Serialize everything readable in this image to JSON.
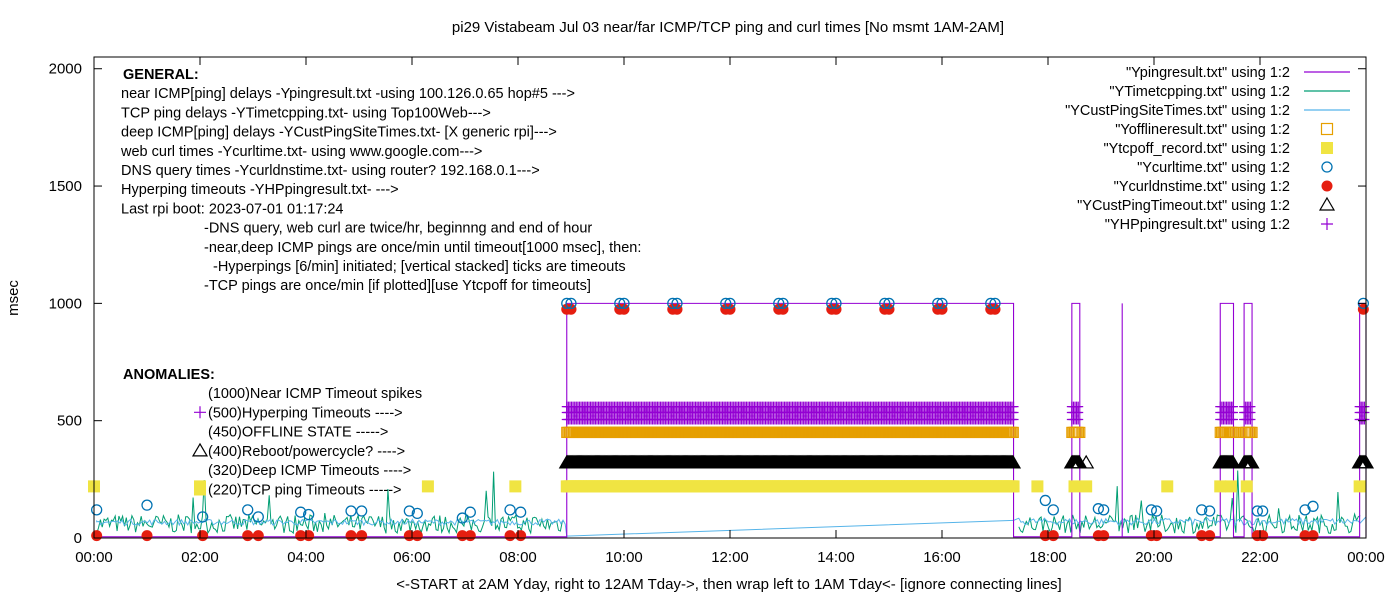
{
  "chart_data": {
    "type": "line",
    "title": "pi29 Vistabeam Jul 03  near/far ICMP/TCP ping and curl times [No msmt 1AM-2AM]",
    "xlabel": "<-START at 2AM Yday, right to 12AM Tday->, then wrap left to 1AM Tday<- [ignore connecting lines]",
    "ylabel": "msec",
    "xlim": [
      0,
      24
    ],
    "ylim": [
      0,
      2050
    ],
    "x_tick_labels": [
      "00:00",
      "02:00",
      "04:00",
      "06:00",
      "08:00",
      "10:00",
      "12:00",
      "14:00",
      "16:00",
      "18:00",
      "20:00",
      "22:00",
      "00:00"
    ],
    "x_tick_values": [
      0,
      2,
      4,
      6,
      8,
      10,
      12,
      14,
      16,
      18,
      20,
      22,
      24
    ],
    "y_tick_labels": [
      "0",
      "500",
      "1000",
      "1500",
      "2000"
    ],
    "y_tick_values": [
      0,
      500,
      1000,
      1500,
      2000
    ],
    "legend_position": "top-right",
    "colors": {
      "ping": "#9400d3",
      "tcp": "#009e73",
      "custping": "#56b4e9",
      "offline": "#e69f00",
      "tcpoff": "#f0e442",
      "curl": "#0072b2",
      "dns": "#e51e10",
      "custtimeout": "#000000",
      "hpping": "#9400d3"
    },
    "legend": [
      {
        "label": "\"Ypingresult.txt\" using 1:2",
        "kind": "line",
        "color": "#9400d3"
      },
      {
        "label": "\"YTimetcpping.txt\" using 1:2",
        "kind": "line",
        "color": "#009e73"
      },
      {
        "label": "\"YCustPingSiteTimes.txt\" using 1:2",
        "kind": "line",
        "color": "#56b4e9"
      },
      {
        "label": "\"Yofflineresult.txt\" using 1:2",
        "kind": "open-square",
        "color": "#e69f00"
      },
      {
        "label": "\"Ytcpoff_record.txt\" using 1:2",
        "kind": "filled-square",
        "color": "#f0e442"
      },
      {
        "label": "\"Ycurltime.txt\" using 1:2",
        "kind": "open-circle",
        "color": "#0072b2"
      },
      {
        "label": "\"Ycurldnstime.txt\" using 1:2",
        "kind": "filled-circle",
        "color": "#e51e10"
      },
      {
        "label": "\"YCustPingTimeout.txt\" using 1:2",
        "kind": "open-triangle",
        "color": "#000000"
      },
      {
        "label": "\"YHPpingresult.txt\" using 1:2",
        "kind": "plus",
        "color": "#9400d3"
      }
    ],
    "general_notes": [
      "GENERAL:",
      "near ICMP[ping] delays -Ypingresult.txt -using 100.126.0.65 hop#5 --->",
      "TCP ping delays -YTimetcpping.txt- using Top100Web--->",
      "deep ICMP[ping] delays -YCustPingSiteTimes.txt- [X generic rpi]--->",
      "web curl times -Ycurltime.txt- using www.google.com--->",
      "DNS query times -Ycurldnstime.txt- using router? 192.168.0.1--->",
      "Hyperping timeouts -YHPpingresult.txt- --->",
      "Last rpi boot: 2023-07-01 01:17:24",
      "-DNS query, web curl are twice/hr, beginnng and end of hour",
      "-near,deep ICMP pings are once/min until timeout[1000 msec], then:",
      "-Hyperpings [6/min] initiated; [vertical stacked] ticks are timeouts",
      "-TCP pings are once/min [if plotted][use Ytcpoff for timeouts]"
    ],
    "anomalies": {
      "heading": "ANOMALIES:",
      "items": [
        {
          "text": "(1000)Near ICMP Timeout spikes",
          "marker": "none"
        },
        {
          "text": "(500)Hyperping Timeouts ---->",
          "marker": "plus"
        },
        {
          "text": "(450)OFFLINE STATE ----->",
          "marker": "none"
        },
        {
          "text": "(400)Reboot/powercycle? ---->",
          "marker": "open-triangle"
        },
        {
          "text": "(320)Deep ICMP Timeouts ---->",
          "marker": "none"
        },
        {
          "text": "(220)TCP ping Timeouts ----->",
          "marker": "filled-square"
        }
      ]
    },
    "near_ping_timeout_segments": [
      [
        8.92,
        17.35
      ],
      [
        18.45,
        18.6
      ],
      [
        21.25,
        21.5
      ],
      [
        21.7,
        21.85
      ],
      [
        23.88,
        24.0
      ]
    ],
    "near_ping_spikes": [
      19.4
    ],
    "hyperping_timeout_ranges": [
      [
        8.92,
        17.35
      ],
      [
        18.45,
        18.6
      ],
      [
        21.25,
        21.5
      ],
      [
        21.7,
        21.85
      ],
      [
        23.88,
        24.0
      ]
    ],
    "offline_ranges": [
      [
        8.92,
        17.35
      ],
      [
        18.45,
        18.6
      ],
      [
        21.25,
        21.5
      ],
      [
        21.7,
        21.85
      ]
    ],
    "custping_timeout_ranges": [
      [
        8.92,
        17.35
      ],
      [
        18.45,
        18.6
      ],
      [
        21.25,
        21.5
      ],
      [
        21.7,
        21.85
      ],
      [
        23.88,
        24.0
      ]
    ],
    "custping_timeout_singles": [
      18.72
    ],
    "tcpoff_ranges": [
      [
        8.92,
        17.35
      ]
    ],
    "tcpoff_points": [
      0.0,
      2.0,
      6.3,
      7.95,
      17.8,
      18.5,
      18.72,
      20.25,
      21.25,
      21.45,
      21.75,
      23.88
    ],
    "curl_points": [
      [
        0.05,
        120
      ],
      [
        1.0,
        140
      ],
      [
        2.05,
        90
      ],
      [
        2.9,
        120
      ],
      [
        3.1,
        90
      ],
      [
        3.9,
        110
      ],
      [
        4.05,
        100
      ],
      [
        4.85,
        115
      ],
      [
        5.05,
        115
      ],
      [
        5.95,
        115
      ],
      [
        6.1,
        105
      ],
      [
        6.95,
        85
      ],
      [
        7.1,
        110
      ],
      [
        7.85,
        120
      ],
      [
        8.05,
        110
      ],
      [
        8.92,
        1000
      ],
      [
        9.0,
        1000
      ],
      [
        9.92,
        1000
      ],
      [
        10.0,
        1000
      ],
      [
        10.92,
        1000
      ],
      [
        11.0,
        1000
      ],
      [
        11.92,
        1000
      ],
      [
        12.0,
        1000
      ],
      [
        12.92,
        1000
      ],
      [
        13.0,
        1000
      ],
      [
        13.92,
        1000
      ],
      [
        14.0,
        1000
      ],
      [
        14.92,
        1000
      ],
      [
        15.0,
        1000
      ],
      [
        15.92,
        1000
      ],
      [
        16.0,
        1000
      ],
      [
        16.92,
        1000
      ],
      [
        17.0,
        1000
      ],
      [
        17.95,
        160
      ],
      [
        18.1,
        120
      ],
      [
        18.95,
        125
      ],
      [
        19.05,
        120
      ],
      [
        19.95,
        120
      ],
      [
        20.05,
        115
      ],
      [
        20.9,
        120
      ],
      [
        21.05,
        115
      ],
      [
        21.95,
        115
      ],
      [
        22.05,
        115
      ],
      [
        22.85,
        120
      ],
      [
        23.0,
        135
      ],
      [
        23.95,
        1000
      ]
    ],
    "dns_points": [
      [
        0.05,
        10
      ],
      [
        1.0,
        10
      ],
      [
        2.05,
        10
      ],
      [
        2.9,
        10
      ],
      [
        3.1,
        10
      ],
      [
        3.9,
        10
      ],
      [
        4.05,
        10
      ],
      [
        4.85,
        10
      ],
      [
        5.05,
        10
      ],
      [
        5.95,
        10
      ],
      [
        6.1,
        10
      ],
      [
        6.95,
        10
      ],
      [
        7.1,
        10
      ],
      [
        7.85,
        10
      ],
      [
        8.05,
        10
      ],
      [
        8.92,
        975
      ],
      [
        9.0,
        975
      ],
      [
        9.92,
        975
      ],
      [
        10.0,
        975
      ],
      [
        10.92,
        975
      ],
      [
        11.0,
        975
      ],
      [
        11.92,
        975
      ],
      [
        12.0,
        975
      ],
      [
        12.92,
        975
      ],
      [
        13.0,
        975
      ],
      [
        13.92,
        975
      ],
      [
        14.0,
        975
      ],
      [
        14.92,
        975
      ],
      [
        15.0,
        975
      ],
      [
        15.92,
        975
      ],
      [
        16.0,
        975
      ],
      [
        16.92,
        975
      ],
      [
        17.0,
        975
      ],
      [
        17.95,
        10
      ],
      [
        18.1,
        10
      ],
      [
        18.95,
        10
      ],
      [
        19.05,
        10
      ],
      [
        19.95,
        10
      ],
      [
        20.05,
        10
      ],
      [
        20.9,
        10
      ],
      [
        21.05,
        10
      ],
      [
        21.95,
        10
      ],
      [
        22.05,
        10
      ],
      [
        22.85,
        10
      ],
      [
        23.0,
        10
      ],
      [
        23.95,
        975
      ]
    ],
    "tcp_baseline_msec": [
      20,
      100
    ],
    "near_ping_baseline_msec": [
      0,
      10
    ]
  }
}
